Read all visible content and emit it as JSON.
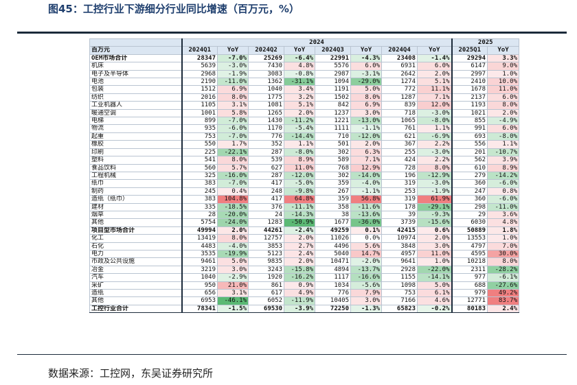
{
  "title": "图45：工控行业下游细分行业同比增速（百万元，%）",
  "source": "数据来源：工控网，东吴证券研究所",
  "colors": {
    "positive": "#f07f80",
    "negative": "#5bb974",
    "header": "#dbe6f2",
    "title": "#1f3f6e"
  },
  "chart_data": {
    "type": "table",
    "years": [
      "2024",
      "2025"
    ],
    "columns": [
      "百万元",
      "2024Q1",
      "YoY",
      "2024Q2",
      "YoY",
      "2024Q3",
      "YoY",
      "2024Q4",
      "YoY",
      "2025Q1",
      "YoY"
    ],
    "rows": [
      [
        "OEM市场合计",
        "28347",
        "-7.0%",
        "25269",
        "-6.4%",
        "22991",
        "-4.3%",
        "23408",
        "-1.4%",
        "29294",
        "3.3%"
      ],
      [
        "机床",
        "5639",
        "-3.0%",
        "7430",
        "4.8%",
        "5576",
        "6.0%",
        "6931",
        "6.0%",
        "6147",
        "9.0%"
      ],
      [
        "电子及半导体",
        "2968",
        "-1.9%",
        "3083",
        "-0.8%",
        "2987",
        "-3.1%",
        "2642",
        "2.0%",
        "2997",
        "1.0%"
      ],
      [
        "电池",
        "2190",
        "-11.0%",
        "1362",
        "-31.1%",
        "1094",
        "-29.0%",
        "1274",
        "5.1%",
        "2410",
        "10.0%"
      ],
      [
        "包装",
        "1512",
        "6.9%",
        "1040",
        "3.4%",
        "1191",
        "5.0%",
        "772",
        "11.1%",
        "1678",
        "11.0%"
      ],
      [
        "纺织",
        "2016",
        "8.0%",
        "1775",
        "3.2%",
        "1502",
        "8.0%",
        "1287",
        "7.1%",
        "2137",
        "6.0%"
      ],
      [
        "工业机器人",
        "1105",
        "3.1%",
        "1081",
        "5.1%",
        "842",
        "6.9%",
        "839",
        "12.0%",
        "1193",
        "8.0%"
      ],
      [
        "暖通空调",
        "1001",
        "5.8%",
        "1265",
        "2.0%",
        "1237",
        "3.0%",
        "718",
        "-3.0%",
        "1021",
        "2.0%"
      ],
      [
        "电梯",
        "899",
        "-7.0%",
        "1430",
        "-11.2%",
        "1221",
        "-13.0%",
        "1065",
        "-8.0%",
        "855",
        "-4.9%"
      ],
      [
        "物流",
        "935",
        "-6.0%",
        "1170",
        "-5.4%",
        "1111",
        "-1.1%",
        "761",
        "1.1%",
        "991",
        "6.0%"
      ],
      [
        "起重",
        "753",
        "-7.0%",
        "776",
        "-14.4%",
        "710",
        "-12.0%",
        "621",
        "-6.9%",
        "693",
        "-8.0%"
      ],
      [
        "橡胶",
        "550",
        "1.7%",
        "352",
        "1.1%",
        "501",
        "2.0%",
        "367",
        "2.2%",
        "556",
        "1.1%"
      ],
      [
        "印刷",
        "225",
        "-22.1%",
        "287",
        "-8.0%",
        "302",
        "6.3%",
        "255",
        "-3.0%",
        "201",
        "-10.7%"
      ],
      [
        "塑料",
        "541",
        "8.0%",
        "539",
        "8.9%",
        "589",
        "7.1%",
        "424",
        "2.2%",
        "562",
        "3.9%"
      ],
      [
        "食品饮料",
        "560",
        "5.7%",
        "627",
        "11.0%",
        "768",
        "12.9%",
        "728",
        "8.0%",
        "610",
        "8.9%"
      ],
      [
        "工程机械",
        "325",
        "-16.0%",
        "287",
        "-12.0%",
        "302",
        "-14.0%",
        "196",
        "-12.9%",
        "279",
        "-14.2%"
      ],
      [
        "纸巾",
        "383",
        "-7.0%",
        "417",
        "-5.0%",
        "359",
        "-4.0%",
        "319",
        "-3.0%",
        "360",
        "-6.0%"
      ],
      [
        "制药",
        "245",
        "0.4%",
        "248",
        "-9.8%",
        "267",
        "-1.1%",
        "253",
        "-1.9%",
        "247",
        "0.8%"
      ],
      [
        "造纸（纸巾）",
        "383",
        "104.8%",
        "417",
        "64.8%",
        "359",
        "56.8%",
        "319",
        "61.9%",
        "360",
        "-6.0%"
      ],
      [
        "建材",
        "335",
        "-18.5%",
        "376",
        "-11.1%",
        "358",
        "-11.6%",
        "178",
        "-29.1%",
        "298",
        "-11.0%"
      ],
      [
        "烟草",
        "28",
        "-20.0%",
        "24",
        "-14.3%",
        "38",
        "-13.6%",
        "39",
        "-9.3%",
        "29",
        "3.6%"
      ],
      [
        "其他",
        "5754",
        "-24.0%",
        "1283",
        "-50.9%",
        "1677",
        "-36.0%",
        "3739",
        "-15.6%",
        "6030",
        "4.8%"
      ],
      [
        "项目型市场合计",
        "49994",
        "2.0%",
        "44261",
        "-2.4%",
        "49259",
        "0.1%",
        "42415",
        "0.6%",
        "50889",
        "1.8%"
      ],
      [
        "化工",
        "13419",
        "8.0%",
        "12757",
        "2.0%",
        "11026",
        "0.0%",
        "10974",
        "2.0%",
        "13553",
        "1.0%"
      ],
      [
        "石化",
        "4483",
        "-4.0%",
        "3853",
        "2.7%",
        "4496",
        "5.6%",
        "3848",
        "3.0%",
        "4797",
        "7.0%"
      ],
      [
        "电力",
        "3535",
        "-19.9%",
        "5123",
        "2.4%",
        "5040",
        "14.7%",
        "4957",
        "11.0%",
        "4595",
        "30.0%"
      ],
      [
        "市政及公共设施",
        "9461",
        "5.0%",
        "9835",
        "2.0%",
        "10471",
        "-2.0%",
        "9641",
        "1.0%",
        "10218",
        "8.0%"
      ],
      [
        "冶金",
        "3219",
        "3.0%",
        "3243",
        "-15.8%",
        "4894",
        "-13.7%",
        "2928",
        "-22.0%",
        "2311",
        "-28.2%"
      ],
      [
        "汽车",
        "1040",
        "-2.9%",
        "1920",
        "-16.2%",
        "1117",
        "-16.6%",
        "1155",
        "-14.1%",
        "977",
        "-6.1%"
      ],
      [
        "采矿",
        "950",
        "21.0%",
        "861",
        "0.9%",
        "1034",
        "-5.6%",
        "1098",
        "5.0%",
        "688",
        "-27.6%"
      ],
      [
        "造纸",
        "656",
        "3.1%",
        "617",
        "4.9%",
        "776",
        "7.9%",
        "753",
        "6.1%",
        "979",
        "49.2%"
      ],
      [
        "其他",
        "6953",
        "-46.1%",
        "6052",
        "-11.9%",
        "10405",
        "3.0%",
        "7166",
        "4.6%",
        "12771",
        "83.7%"
      ],
      [
        "工控行业合计",
        "78341",
        "-1.5%",
        "69530",
        "-3.9%",
        "72250",
        "-1.3%",
        "65823",
        "-0.2%",
        "80183",
        "2.4%"
      ]
    ]
  }
}
